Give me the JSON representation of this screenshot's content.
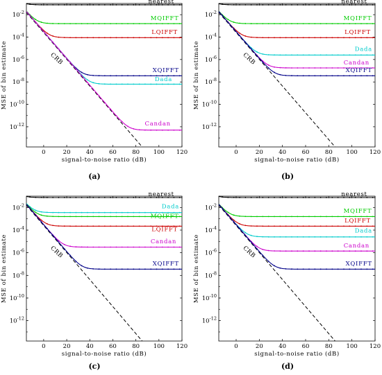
{
  "chart_data": [
    {
      "type": "line",
      "panel_label": "(a)",
      "xlabel": "signal-to-noise ratio (dB)",
      "ylabel": "MSE of bin estimate",
      "xlim": [
        -15,
        120
      ],
      "ylim": [
        -13.8,
        -1.0
      ],
      "y_scale": "log",
      "x_ticks": [
        "0",
        "20",
        "40",
        "60",
        "80",
        "100",
        "120"
      ],
      "y_ticks": [
        "10^-2",
        "10^-4",
        "10^-6",
        "10^-8",
        "10^-10",
        "10^-12"
      ],
      "crb": {
        "name": "CRB",
        "x": [
          -15,
          88
        ],
        "log10_y": [
          -1.8,
          -14.1
        ],
        "color": "#000000",
        "style": "dashed"
      },
      "series": [
        {
          "name": "nearest",
          "color": "#000000",
          "floor": -1.12,
          "knee": -20,
          "label_x": 102,
          "label_y": -1.1
        },
        {
          "name": "MQIFFT",
          "color": "#00cc00",
          "floor": -2.8,
          "knee": 0,
          "label_x": 105,
          "label_y": -2.6
        },
        {
          "name": "LQIFFT",
          "color": "#cc0000",
          "floor": -4.05,
          "knee": 12,
          "label_x": 105,
          "label_y": -3.85
        },
        {
          "name": "XQIFFT",
          "color": "#000088",
          "floor": -7.45,
          "knee": 34,
          "label_x": 106,
          "label_y": -7.25
        },
        {
          "name": "Dada",
          "color": "#00cccc",
          "floor": -8.2,
          "knee": 38,
          "label_x": 104,
          "label_y": -8.05
        },
        {
          "name": "Candan",
          "color": "#cc00cc",
          "floor": -12.3,
          "knee": 82,
          "label_x": 99,
          "label_y": -12.0
        }
      ]
    },
    {
      "type": "line",
      "panel_label": "(b)",
      "xlabel": "signal-to-noise ratio (dB)",
      "ylabel": "MSE of bin estimate",
      "xlim": [
        -15,
        120
      ],
      "ylim": [
        -13.8,
        -1.0
      ],
      "y_scale": "log",
      "x_ticks": [
        "0",
        "20",
        "40",
        "60",
        "80",
        "100",
        "120"
      ],
      "y_ticks": [
        "10^-2",
        "10^-4",
        "10^-6",
        "10^-8",
        "10^-10",
        "10^-12"
      ],
      "crb": {
        "name": "CRB",
        "x": [
          -15,
          88
        ],
        "log10_y": [
          -1.8,
          -14.1
        ],
        "color": "#000000",
        "style": "dashed"
      },
      "series": [
        {
          "name": "nearest",
          "color": "#000000",
          "floor": -1.12,
          "knee": -20,
          "label_x": 102,
          "label_y": -1.1
        },
        {
          "name": "MQIFFT",
          "color": "#00cc00",
          "floor": -2.8,
          "knee": 0,
          "label_x": 105,
          "label_y": -2.6
        },
        {
          "name": "LQIFFT",
          "color": "#cc0000",
          "floor": -4.05,
          "knee": 12,
          "label_x": 105,
          "label_y": -3.85
        },
        {
          "name": "Dada",
          "color": "#00cccc",
          "floor": -5.6,
          "knee": 22,
          "label_x": 110,
          "label_y": -5.35
        },
        {
          "name": "Candan",
          "color": "#cc00cc",
          "floor": -6.75,
          "knee": 28,
          "label_x": 104,
          "label_y": -6.55
        },
        {
          "name": "XQIFFT",
          "color": "#000088",
          "floor": -7.45,
          "knee": 34,
          "label_x": 106,
          "label_y": -7.25
        }
      ]
    },
    {
      "type": "line",
      "panel_label": "(c)",
      "xlabel": "signal-to-noise ratio (dB)",
      "ylabel": "MSE of bin estimate",
      "xlim": [
        -15,
        120
      ],
      "ylim": [
        -13.8,
        -1.0
      ],
      "y_scale": "log",
      "x_ticks": [
        "0",
        "20",
        "40",
        "60",
        "80",
        "100",
        "120"
      ],
      "y_ticks": [
        "10^-2",
        "10^-4",
        "10^-6",
        "10^-8",
        "10^-10",
        "10^-12"
      ],
      "crb": {
        "name": "CRB",
        "x": [
          -15,
          88
        ],
        "log10_y": [
          -1.8,
          -14.1
        ],
        "color": "#000000",
        "style": "dashed"
      },
      "series": [
        {
          "name": "nearest",
          "color": "#000000",
          "floor": -1.12,
          "knee": -20,
          "label_x": 102,
          "label_y": -1.1
        },
        {
          "name": "Dada",
          "color": "#00cccc",
          "floor": -2.45,
          "knee": -10,
          "label_x": 110,
          "label_y": -2.2
        },
        {
          "name": "MQIFFT",
          "color": "#00cc00",
          "floor": -2.8,
          "knee": 0,
          "label_x": 105,
          "label_y": -3.05
        },
        {
          "name": "LQIFFT",
          "color": "#cc0000",
          "floor": -3.65,
          "knee": 8,
          "label_x": 105,
          "label_y": -4.2
        },
        {
          "name": "Candan",
          "color": "#cc00cc",
          "floor": -5.5,
          "knee": 18,
          "label_x": 104,
          "label_y": -5.3
        },
        {
          "name": "XQIFFT",
          "color": "#000088",
          "floor": -7.45,
          "knee": 34,
          "label_x": 106,
          "label_y": -7.25
        }
      ]
    },
    {
      "type": "line",
      "panel_label": "(d)",
      "xlabel": "signal-to-noise ratio (dB)",
      "ylabel": "MSE of bin estimate",
      "xlim": [
        -15,
        120
      ],
      "ylim": [
        -13.8,
        -1.0
      ],
      "y_scale": "log",
      "x_ticks": [
        "0",
        "20",
        "40",
        "60",
        "80",
        "100",
        "120"
      ],
      "y_ticks": [
        "10^-2",
        "10^-4",
        "10^-6",
        "10^-8",
        "10^-10",
        "10^-12"
      ],
      "crb": {
        "name": "CRB",
        "x": [
          -15,
          88
        ],
        "log10_y": [
          -1.8,
          -14.1
        ],
        "color": "#000000",
        "style": "dashed"
      },
      "series": [
        {
          "name": "nearest",
          "color": "#000000",
          "floor": -1.12,
          "knee": -20,
          "label_x": 102,
          "label_y": -1.1
        },
        {
          "name": "MQIFFT",
          "color": "#00cc00",
          "floor": -2.8,
          "knee": 0,
          "label_x": 105,
          "label_y": -2.6
        },
        {
          "name": "LQIFFT",
          "color": "#cc0000",
          "floor": -3.65,
          "knee": 8,
          "label_x": 105,
          "label_y": -3.45
        },
        {
          "name": "Dada",
          "color": "#00cccc",
          "floor": -4.6,
          "knee": 14,
          "label_x": 110,
          "label_y": -4.35
        },
        {
          "name": "Candan",
          "color": "#cc00cc",
          "floor": -5.85,
          "knee": 22,
          "label_x": 104,
          "label_y": -5.65
        },
        {
          "name": "XQIFFT",
          "color": "#000088",
          "floor": -7.45,
          "knee": 34,
          "label_x": 106,
          "label_y": -7.25
        }
      ]
    }
  ]
}
